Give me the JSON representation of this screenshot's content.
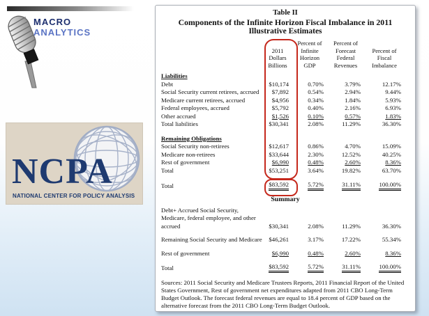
{
  "colors": {
    "accent_red": "#c5281c",
    "brand_navy": "#1d2f6e",
    "brand_blue": "#5b74c4",
    "ncpa_navy": "#1e3a70",
    "ncpa_beige": "#ded5c6",
    "slide_bottom_blue": "#cfe2f2"
  },
  "branding": {
    "macro_line1": "Macro",
    "macro_line2": "Analytics",
    "ncpa_acronym": "NCPA",
    "ncpa_tagline": "NATIONAL CENTER FOR POLICY ANALYSIS"
  },
  "table": {
    "caption": "Table II",
    "title": "Components of the Infinite Horizon Fiscal Imbalance in 2011",
    "subtitle": "Illustrative Estimates",
    "columns": [
      "2011\nDollars\nBillions",
      "Percent of\nInfinite\nHorizon\nGDP",
      "Percent of\nForecast\nFederal\nRevenues",
      "Percent of\nFiscal\nImbalance"
    ],
    "sections": [
      {
        "heading": "Liabilities",
        "rows": [
          {
            "label": "Debt",
            "values": [
              "$10,174",
              "0.70%",
              "3.79%",
              "12.17%"
            ]
          },
          {
            "label": "Social Security current retirees, accrued",
            "values": [
              "$7,892",
              "0.54%",
              "2.94%",
              "9.44%"
            ]
          },
          {
            "label": "Medicare current retirees, accrued",
            "values": [
              "$4,956",
              "0.34%",
              "1.84%",
              "5.93%"
            ]
          },
          {
            "label": "Federal employees, accrued",
            "values": [
              "$5,792",
              "0.40%",
              "2.16%",
              "6.93%"
            ]
          },
          {
            "label": "Other accrued",
            "values": [
              "$1,526",
              "0.10%",
              "0.57%",
              "1.83%"
            ],
            "u": true
          },
          {
            "label": "Total liabilities",
            "values": [
              "$30,341",
              "2.08%",
              "11.29%",
              "36.30%"
            ]
          }
        ]
      },
      {
        "heading": "Remaining Obligations",
        "rows": [
          {
            "label": "Social Security non-retirees",
            "values": [
              "$12,617",
              "0.86%",
              "4.70%",
              "15.09%"
            ]
          },
          {
            "label": "Medicare non-retirees",
            "values": [
              "$33,644",
              "2.30%",
              "12.52%",
              "40.25%"
            ]
          },
          {
            "label": "Rest of government",
            "values": [
              "$6,990",
              "0.48%",
              "2.60%",
              "8.36%"
            ],
            "u": true
          },
          {
            "label": "Total",
            "values": [
              "$53,251",
              "3.64%",
              "19.82%",
              "63.70%"
            ],
            "ref": "mid-total"
          }
        ]
      }
    ],
    "grand_total": {
      "label": "Total",
      "values": [
        "$83,592",
        "5.72%",
        "31.11%",
        "100.00%"
      ],
      "du": true,
      "ref": "grand-total"
    },
    "summary": {
      "heading": "Summary",
      "rows": [
        {
          "label": "Debt+ Accrued Social Security, Medicare, federal employee, and other accrued",
          "values": [
            "$30,341",
            "2.08%",
            "11.29%",
            "36.30%"
          ]
        },
        {
          "label": "Remaining Social Security and Medicare",
          "values": [
            "$46,261",
            "3.17%",
            "17.22%",
            "55.34%"
          ]
        },
        {
          "label": "Rest of government",
          "values": [
            "$6,990",
            "0.48%",
            "2.60%",
            "8.36%"
          ],
          "u": true
        },
        {
          "label": "Total",
          "values": [
            "$83,592",
            "5.72%",
            "31.11%",
            "100.00%"
          ],
          "du": true
        }
      ]
    },
    "sources": "Sources: 2011 Social Security and Medicare Trustees Reports, 2011 Financial Report of the United States Government, Rest of government net expenditures adapted from 2011 CBO Long-Term Budget Outlook. The forecast federal revenues are equal to 18.4 percent of GDP based on the alternative forecast from the 2011 CBO Long-Term Budget Outlook."
  }
}
